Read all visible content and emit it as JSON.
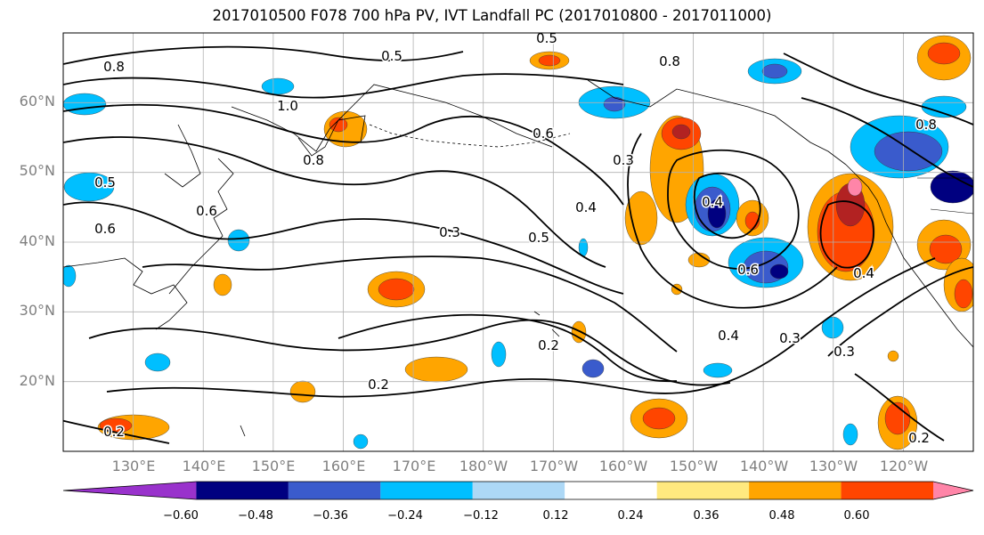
{
  "title": "2017010500 F078 700 hPa PV, IVT Landfall PC (2017010800 - 2017011000)",
  "map": {
    "projection": "cylindrical",
    "region": "North Pacific",
    "lon_range_deg_east": [
      120,
      250
    ],
    "lat_range": [
      10,
      70
    ],
    "gridlines": true,
    "coastlines": true
  },
  "lat_ticks": [
    "60°N",
    "50°N",
    "40°N",
    "30°N",
    "20°N"
  ],
  "lon_ticks": [
    "130°E",
    "140°E",
    "150°E",
    "160°E",
    "170°E",
    "180°W",
    "170°W",
    "160°W",
    "150°W",
    "140°W",
    "130°W",
    "120°W"
  ],
  "contour_labels": [
    {
      "text": "0.5"
    },
    {
      "text": "0.5"
    },
    {
      "text": "0.6"
    },
    {
      "text": "0.8"
    },
    {
      "text": "0.8"
    },
    {
      "text": "1.0"
    },
    {
      "text": "0.8"
    },
    {
      "text": "0.6"
    },
    {
      "text": "0.3"
    },
    {
      "text": "0.4"
    },
    {
      "text": "0.5"
    },
    {
      "text": "0.3"
    },
    {
      "text": "0.2"
    },
    {
      "text": "0.2"
    },
    {
      "text": "0.6"
    },
    {
      "text": "0.4"
    },
    {
      "text": "0.3"
    },
    {
      "text": "0.4"
    },
    {
      "text": "0.3"
    },
    {
      "text": "0.2"
    },
    {
      "text": "0.2"
    },
    {
      "text": "0.8"
    },
    {
      "text": "0.5"
    },
    {
      "text": "0.6"
    },
    {
      "text": "0.4"
    }
  ],
  "colorbar": {
    "ticks": [
      "−0.60",
      "−0.48",
      "−0.36",
      "−0.24",
      "−0.12",
      "0.12",
      "0.24",
      "0.36",
      "0.48",
      "0.60"
    ],
    "colors": [
      "#9932cc",
      "#000080",
      "#3a5bcc",
      "#00bfff",
      "#add8f6",
      "#ffffff",
      "#ffe97f",
      "#ffa500",
      "#ff4500",
      "#b22222",
      "#ff85a8"
    ],
    "extend": "both"
  },
  "shading_colors": {
    "neg_strong": "#000080",
    "neg_mid": "#3a5bcc",
    "neg_light": "#00bfff",
    "pos_light": "#ffa500",
    "pos_mid": "#ff4500",
    "pos_strong": "#b22222",
    "pos_max": "#ff85a8"
  }
}
